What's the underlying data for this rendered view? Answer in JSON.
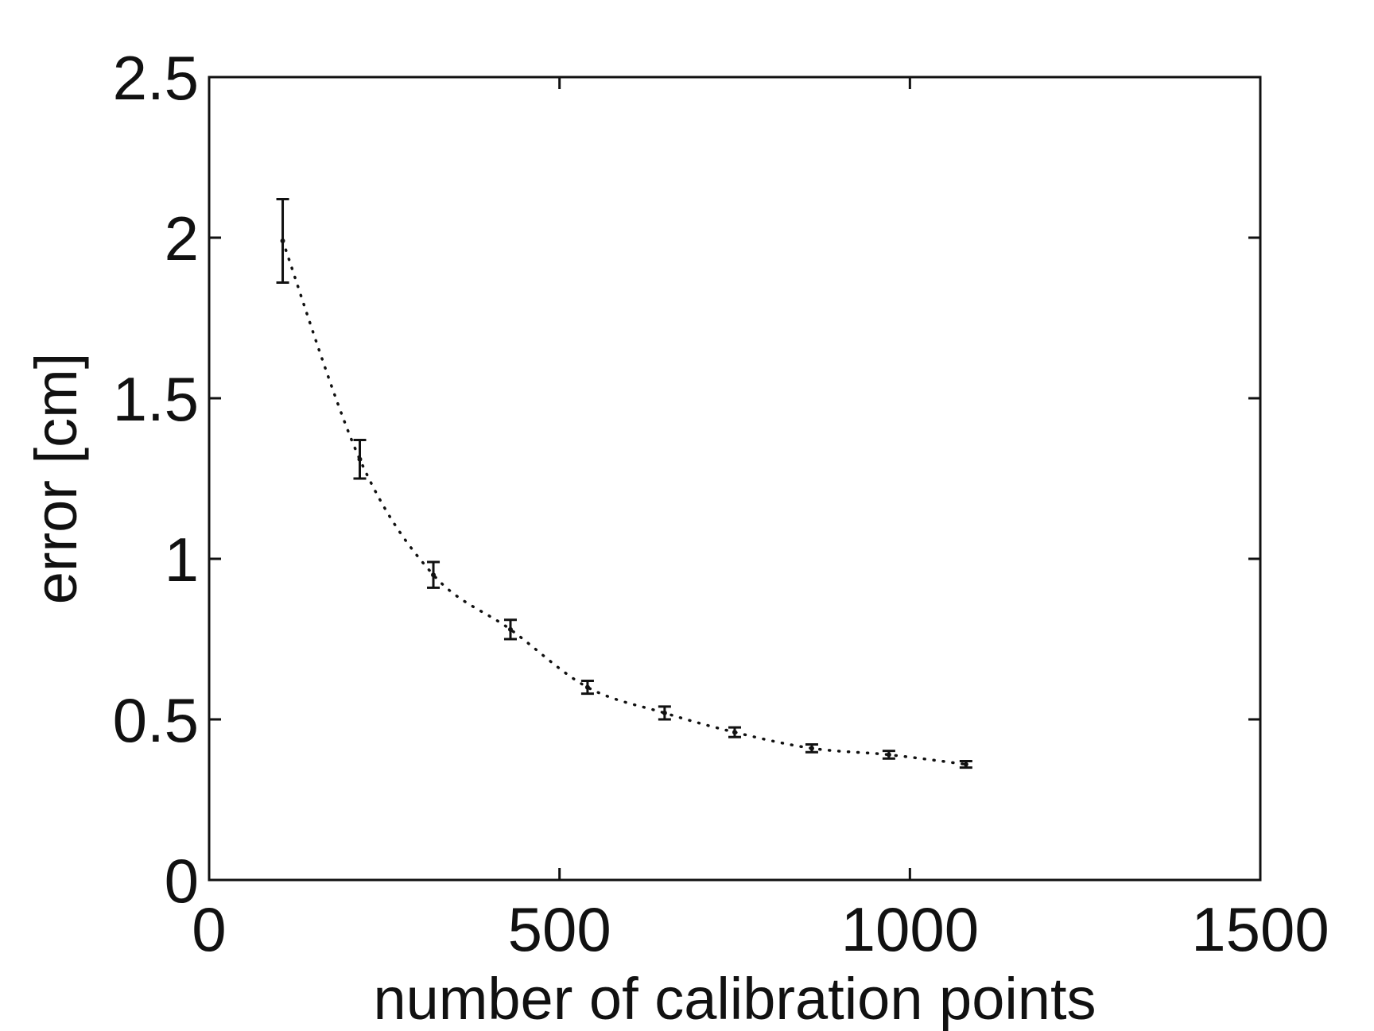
{
  "chart_data": {
    "type": "line",
    "title": "",
    "xlabel": "number of calibration points",
    "ylabel": "error [cm]",
    "xlim": [
      0,
      1500
    ],
    "ylim": [
      0,
      2.5
    ],
    "xticks": [
      0,
      500,
      1000,
      1500
    ],
    "xtick_labels": [
      "0",
      "500",
      "1000",
      "1500"
    ],
    "yticks": [
      0,
      0.5,
      1,
      1.5,
      2,
      2.5
    ],
    "ytick_labels": [
      "0",
      "0.5",
      "1",
      "1.5",
      "2",
      "2.5"
    ],
    "grid": false,
    "legend": "none",
    "line_style": "dotted",
    "line_color": "#111111",
    "series": [
      {
        "x": [
          105,
          215,
          320,
          430,
          540,
          650,
          750,
          860,
          970,
          1080
        ],
        "y": [
          1.99,
          1.31,
          0.95,
          0.78,
          0.6,
          0.52,
          0.46,
          0.41,
          0.39,
          0.36
        ],
        "err": [
          0.13,
          0.06,
          0.04,
          0.03,
          0.02,
          0.02,
          0.015,
          0.012,
          0.012,
          0.01
        ]
      }
    ]
  }
}
